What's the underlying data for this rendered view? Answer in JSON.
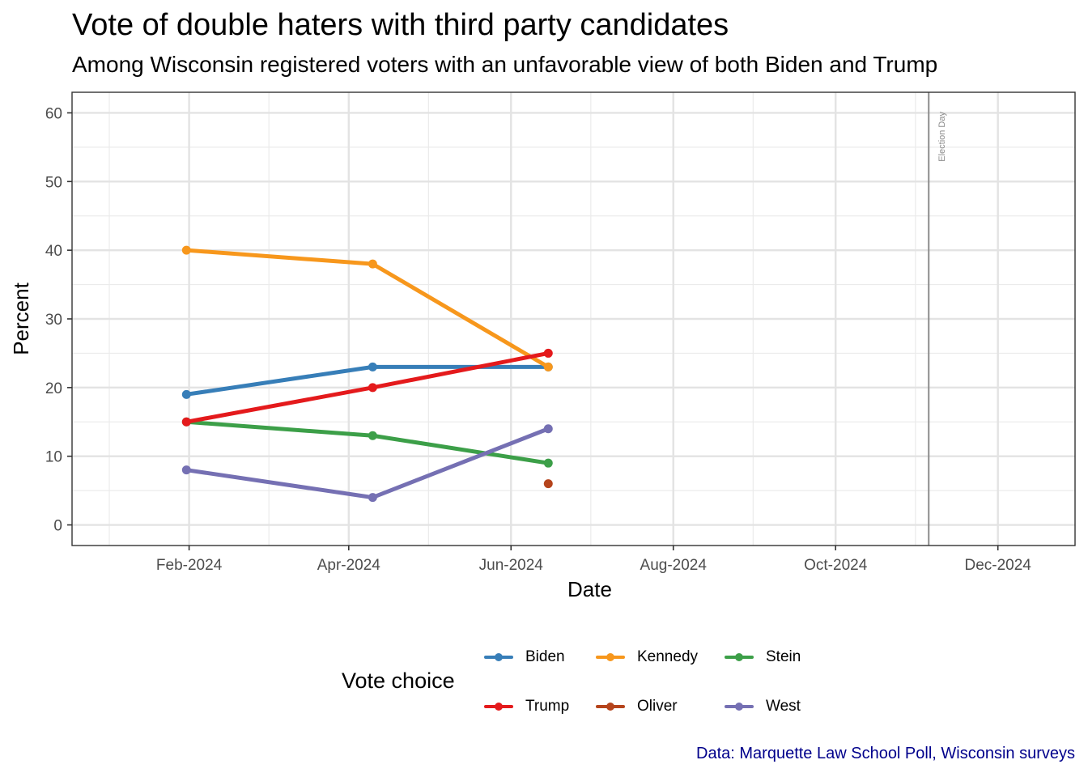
{
  "chart_data": {
    "type": "line",
    "title": "Vote of double haters with third party candidates",
    "subtitle": "Among Wisconsin registered voters with an unfavorable view of both Biden and Trump",
    "xlabel": "Date",
    "ylabel": "Percent",
    "caption": "Data: Marquette Law School Poll, Wisconsin surveys",
    "ylim": [
      -3,
      63
    ],
    "xlim": [
      "2023-12-19",
      "2024-12-30"
    ],
    "yticks": [
      0,
      10,
      20,
      30,
      40,
      50,
      60
    ],
    "xticks": [
      "2024-02-01",
      "2024-04-01",
      "2024-06-01",
      "2024-08-01",
      "2024-10-01",
      "2024-12-01"
    ],
    "xtick_labels": [
      "Feb-2024",
      "Apr-2024",
      "Jun-2024",
      "Aug-2024",
      "Oct-2024",
      "Dec-2024"
    ],
    "grid": true,
    "legend_position": "bottom",
    "legend_title": "Vote choice",
    "annotation": {
      "date": "2024-11-05",
      "label": "Election Day"
    },
    "series": [
      {
        "name": "Biden",
        "color": "#377eb8",
        "x": [
          "2024-01-31",
          "2024-04-10",
          "2024-06-15"
        ],
        "y": [
          19,
          23,
          23
        ]
      },
      {
        "name": "Kennedy",
        "color": "#f7971c",
        "x": [
          "2024-01-31",
          "2024-04-10",
          "2024-06-15"
        ],
        "y": [
          40,
          38,
          23
        ]
      },
      {
        "name": "Stein",
        "color": "#3c9f48",
        "x": [
          "2024-01-31",
          "2024-04-10",
          "2024-06-15"
        ],
        "y": [
          15,
          13,
          9
        ]
      },
      {
        "name": "Trump",
        "color": "#e41a1c",
        "x": [
          "2024-01-31",
          "2024-04-10",
          "2024-06-15"
        ],
        "y": [
          15,
          20,
          25
        ]
      },
      {
        "name": "Oliver",
        "color": "#b5441c",
        "x": [
          "2024-06-15"
        ],
        "y": [
          6
        ]
      },
      {
        "name": "West",
        "color": "#7570b3",
        "x": [
          "2024-01-31",
          "2024-04-10",
          "2024-06-15"
        ],
        "y": [
          8,
          4,
          14
        ]
      }
    ]
  }
}
